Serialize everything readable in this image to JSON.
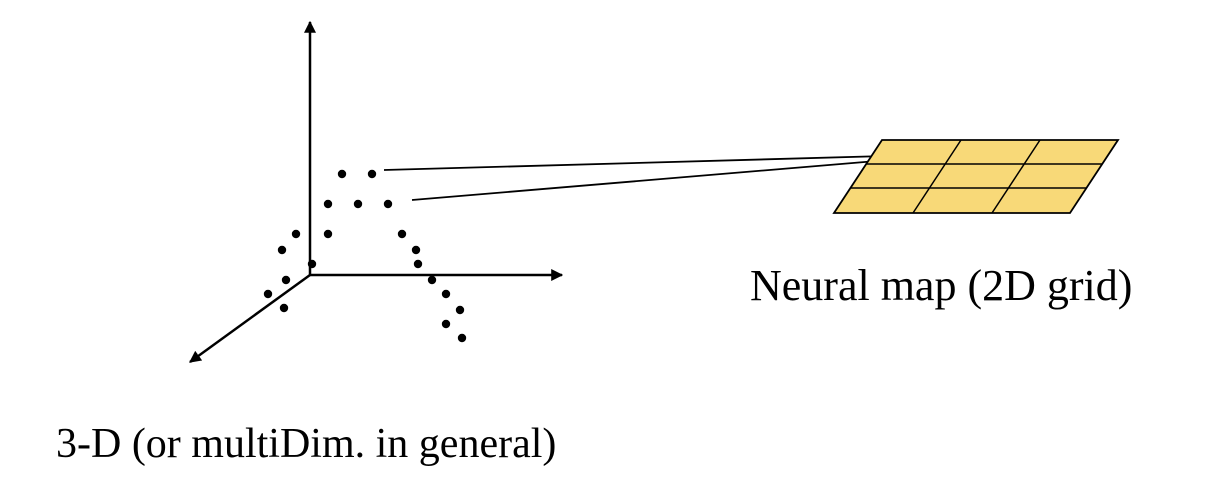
{
  "captions": {
    "neural_map": "Neural map (2D grid)",
    "input_space": "3-D (or multiDim. in general)"
  },
  "colors": {
    "grid_fill": "#f8d978",
    "stroke": "#000000",
    "background": "#ffffff"
  }
}
